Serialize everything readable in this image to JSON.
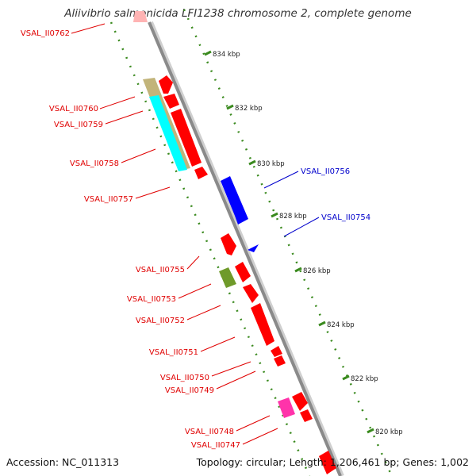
{
  "title": "Aliivibrio salmonicida LFI1238 chromosome 2, complete genome",
  "accession": "Accession: NC_011313",
  "topology": "Topology: circular; Length: 1,206,461 bp; Genes: 1,002",
  "colors": {
    "backbone": "#8a8a8a",
    "tick": "#3a8a1e",
    "forward_gene": "#ff0000",
    "reverse_gene": "#0000ff",
    "label_forward": "#e00000",
    "label_reverse": "#0000cc",
    "cds_olive": "#c2b47a",
    "cds_cyan": "#00ffff",
    "cds_green": "#6f9a2a",
    "cds_pink": "#ff33aa"
  },
  "scale_ticks": [
    "834 kbp",
    "832 kbp",
    "830 kbp",
    "828 kbp",
    "826 kbp",
    "824 kbp",
    "822 kbp",
    "820 kbp"
  ],
  "gene_labels": [
    {
      "text": "VSAL_II0762",
      "strand": "forward"
    },
    {
      "text": "VSAL_II0760",
      "strand": "forward"
    },
    {
      "text": "VSAL_II0759",
      "strand": "forward"
    },
    {
      "text": "VSAL_II0758",
      "strand": "forward"
    },
    {
      "text": "VSAL_II0757",
      "strand": "forward"
    },
    {
      "text": "VSAL_II0756",
      "strand": "reverse"
    },
    {
      "text": "VSAL_II0754",
      "strand": "reverse"
    },
    {
      "text": "VSAL_II0755",
      "strand": "forward"
    },
    {
      "text": "VSAL_II0753",
      "strand": "forward"
    },
    {
      "text": "VSAL_II0752",
      "strand": "forward"
    },
    {
      "text": "VSAL_II0751",
      "strand": "forward"
    },
    {
      "text": "VSAL_II0750",
      "strand": "forward"
    },
    {
      "text": "VSAL_II0749",
      "strand": "forward"
    },
    {
      "text": "VSAL_II0748",
      "strand": "forward"
    },
    {
      "text": "VSAL_II0747",
      "strand": "forward"
    }
  ]
}
